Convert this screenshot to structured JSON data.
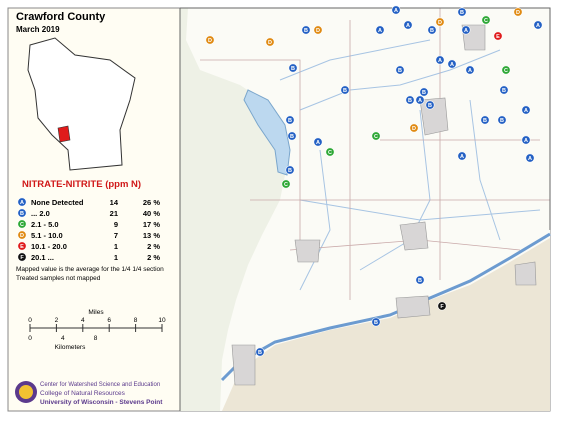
{
  "header": {
    "title": "Crawford County",
    "subtitle": "March 2019"
  },
  "legend": {
    "title": "NITRATE-NITRITE (ppm N)",
    "items": [
      {
        "symbol": "A",
        "range": "None Detected",
        "count": 14,
        "percent": "26 %"
      },
      {
        "symbol": "B",
        "range": "... 2.0",
        "count": 21,
        "percent": "40 %"
      },
      {
        "symbol": "C",
        "range": "2.1 - 5.0",
        "count": 9,
        "percent": "17 %"
      },
      {
        "symbol": "D",
        "range": "5.1 - 10.0",
        "count": 7,
        "percent": "13 %"
      },
      {
        "symbol": "E",
        "range": "10.1 - 20.0",
        "count": 1,
        "percent": "2 %"
      },
      {
        "symbol": "F",
        "range": "20.1 ...",
        "count": 1,
        "percent": "2 %"
      }
    ],
    "notes": [
      "Mapped value is the average for the 1/4 1/4 section",
      "Treated samples not mapped"
    ]
  },
  "scale": {
    "miles_label": "Miles",
    "miles_ticks": [
      "0",
      "2",
      "4",
      "6",
      "8",
      "10"
    ],
    "km_label": "Kilometers",
    "km_ticks": [
      "0",
      "4",
      "8"
    ]
  },
  "logo": {
    "lines": [
      "Center for Watershed Science and Education",
      "College of Natural Resources",
      "University of Wisconsin - Stevens Point"
    ]
  },
  "markers": [
    "A",
    "A",
    "A",
    "A",
    "A",
    "A",
    "A",
    "A",
    "A",
    "A",
    "A",
    "A",
    "A",
    "A",
    "B",
    "B",
    "B",
    "B",
    "B",
    "B",
    "B",
    "B",
    "B",
    "B",
    "B",
    "B",
    "B",
    "B",
    "B",
    "B",
    "B",
    "B",
    "C",
    "C",
    "C",
    "C",
    "C",
    "D",
    "D",
    "D",
    "D",
    "D",
    "D",
    "E",
    "F"
  ]
}
